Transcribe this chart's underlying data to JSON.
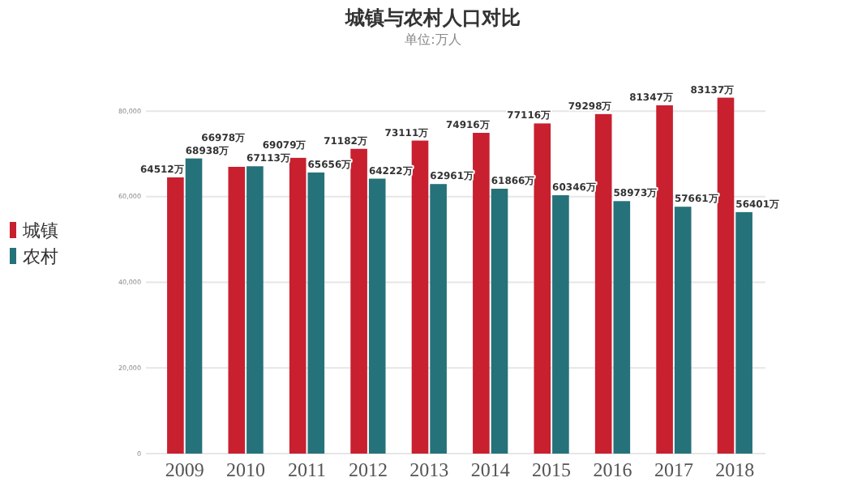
{
  "chart_data": {
    "type": "bar",
    "title": "城镇与农村人口对比",
    "subtitle": "单位:万人",
    "categories": [
      "2009",
      "2010",
      "2011",
      "2012",
      "2013",
      "2014",
      "2015",
      "2016",
      "2017",
      "2018"
    ],
    "series": [
      {
        "name": "城镇",
        "color": "#c8202f",
        "values": [
          64512,
          66978,
          69079,
          71182,
          73111,
          74916,
          77116,
          79298,
          81347,
          83137
        ],
        "value_labels": [
          "64512万",
          "66978万",
          "69079万",
          "71182万",
          "73111万",
          "74916万",
          "77116万",
          "79298万",
          "81347万",
          "83137万"
        ]
      },
      {
        "name": "农村",
        "color": "#25727a",
        "values": [
          68938,
          67113,
          65656,
          64222,
          62961,
          61866,
          60346,
          58973,
          57661,
          56401
        ],
        "value_labels": [
          "68938万",
          "67113万",
          "65656万",
          "64222万",
          "62961万",
          "61866万",
          "60346万",
          "58973万",
          "57661万",
          "56401万"
        ]
      }
    ],
    "ylim": [
      0,
      84000
    ],
    "yticks": [
      0,
      {
        "value": 20000,
        "label": "20,000"
      },
      {
        "value": 40000,
        "label": "40,000"
      },
      {
        "value": 60000,
        "label": "60,000"
      },
      {
        "value": 80000,
        "label": "80,000"
      }
    ],
    "grid": "y",
    "legend": "left"
  }
}
